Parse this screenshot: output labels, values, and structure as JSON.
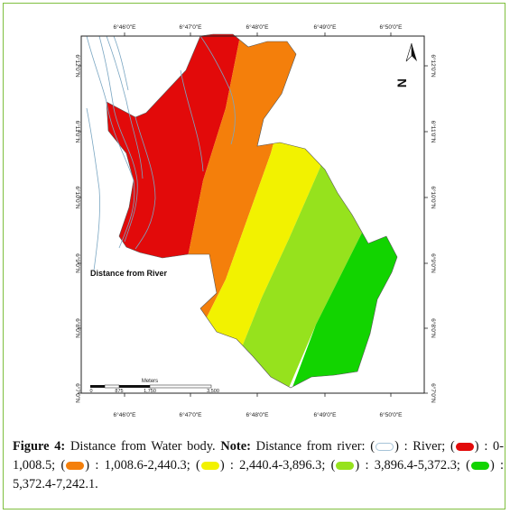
{
  "map": {
    "top_lon_labels": [
      "6°46'0\"E",
      "6°47'0\"E",
      "6°48'0\"E",
      "6°49'0\"E",
      "6°50'0\"E"
    ],
    "bottom_lon_labels": [
      "6°46'0\"E",
      "6°47'0\"E",
      "6°48'0\"E",
      "6°49'0\"E",
      "6°50'0\"E"
    ],
    "left_lat_labels": [
      "6°12'0\"N",
      "6°11'0\"N",
      "6°10'0\"N",
      "6°9'0\"N",
      "6°8'0\"N",
      "6°7'0\"N"
    ],
    "right_lat_labels": [
      "6°12'0\"N",
      "6°11'0\"N",
      "6°10'0\"N",
      "6°9'0\"N",
      "6°8'0\"N",
      "6°7'0\"N"
    ],
    "map_label": "Distance from River",
    "north_letter": "N",
    "scale": {
      "unit": "Meters",
      "ticks_lower": [
        "0",
        "875",
        "3,500"
      ],
      "tick_upper": "1,750"
    },
    "colors": {
      "river": "#ffffff",
      "zone1": "#e20a0a",
      "zone2": "#f47f0b",
      "zone3": "#f2f200",
      "zone4": "#96e21d",
      "zone5": "#12d400"
    }
  },
  "caption": {
    "fig_label": "Figure 4:",
    "fig_text": " Distance from Water body.",
    "note_label": " Note:",
    "note_text": " Distance from river:",
    "items": [
      {
        "text": " : River;"
      },
      {
        "text": " : 0-1,008.5;"
      },
      {
        "text": " : 1,008.6-2,440.3;"
      },
      {
        "text": " : 2,440.4-3,896.3;"
      },
      {
        "text": " : 3,896.4-5,372.3;"
      },
      {
        "text": " : 5,372.4-7,242.1."
      }
    ]
  }
}
